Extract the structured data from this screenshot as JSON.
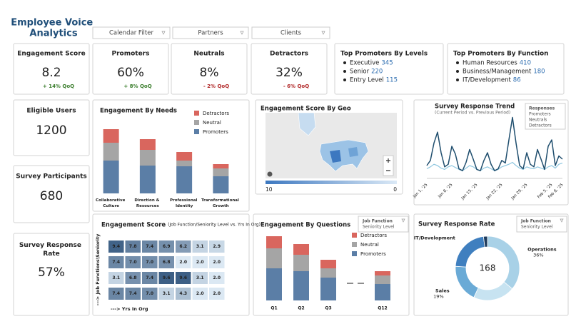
{
  "header": {
    "title": "Employee Voice Analytics"
  },
  "filters": [
    "Calendar Filter",
    "Partners",
    "Clients"
  ],
  "kpis": [
    {
      "label": "Engagement Score",
      "value": 8.2,
      "change": "+ 14% QoQ",
      "color": "#3a7d2c"
    },
    {
      "label": "Promoters",
      "value": "60%",
      "change": "+ 8% QoQ",
      "color": "#3a7d2c"
    },
    {
      "label": "Neutrals",
      "value": "8%",
      "change": "- 2% QoQ",
      "color": "#b22a2a"
    },
    {
      "label": "Detractors",
      "value": "32%",
      "change": "- 6% QoQ",
      "color": "#b22a2a"
    }
  ],
  "top_lists": [
    {
      "title": "Top Promoters By Levels",
      "items": [
        {
          "name": "Executive",
          "value": 345
        },
        {
          "name": "Senior",
          "value": 220
        },
        {
          "name": "Entry Level",
          "value": 115
        }
      ]
    },
    {
      "title": "Top Promoters By Function",
      "items": [
        {
          "name": "Human Resources",
          "value": 410
        },
        {
          "name": "Business/Management",
          "value": 180
        },
        {
          "name": "IT/Development",
          "value": 86
        }
      ]
    }
  ],
  "stats": [
    {
      "label": "Eligible Users",
      "value": 1200
    },
    {
      "label": "Survey Participants",
      "value": 680
    },
    {
      "label": "Survey Response Rate",
      "value": "57%"
    }
  ],
  "chart_data": [
    {
      "type": "stacked_bar",
      "title": "Engagement By Needs",
      "categories": [
        "Collaborative Culture",
        "Direction & Resources",
        "Professional Identity",
        "Transformational Growth"
      ],
      "series": [
        {
          "name": "Detractors",
          "color": "#d9665e",
          "values": [
            19,
            15,
            12,
            6
          ]
        },
        {
          "name": "Neutral",
          "color": "#a5a5a5",
          "values": [
            25,
            22,
            8,
            11
          ]
        },
        {
          "name": "Promoters",
          "color": "#5b7ea6",
          "values": [
            46,
            39,
            38,
            24
          ]
        }
      ],
      "ylim": [
        0,
        100
      ]
    },
    {
      "type": "map",
      "title": "Engagement Score By Geo",
      "legend_ticks": [
        10,
        0
      ]
    },
    {
      "type": "line",
      "title": "Survey Response Trend",
      "subtitle": "(Current Period vs. Previous Period)",
      "categories": [
        "Jan 1, '25",
        null,
        null,
        null,
        null,
        null,
        null,
        "Jan 8, '25",
        null,
        null,
        null,
        null,
        null,
        null,
        "Jan 15, '25",
        null,
        null,
        null,
        null,
        null,
        null,
        "Jan 22, '25",
        null,
        null,
        null,
        null,
        null,
        null,
        "Jan 29, '25",
        null,
        null,
        null,
        null,
        null,
        null,
        "Feb 5, '25",
        null,
        null,
        "Feb 8, '25"
      ],
      "series": [
        {
          "color": "#1f4e6e",
          "values": [
            20,
            28,
            55,
            72,
            40,
            18,
            22,
            50,
            38,
            15,
            12,
            25,
            45,
            30,
            14,
            12,
            28,
            40,
            22,
            12,
            15,
            28,
            24,
            60,
            95,
            55,
            20,
            15,
            40,
            22,
            18,
            45,
            30,
            14,
            50,
            60,
            20,
            35,
            30
          ]
        },
        {
          "color": "#8fc7e0",
          "values": [
            15,
            18,
            22,
            20,
            16,
            14,
            18,
            20,
            17,
            14,
            12,
            16,
            20,
            18,
            14,
            12,
            16,
            18,
            15,
            12,
            14,
            18,
            20,
            22,
            25,
            20,
            16,
            14,
            18,
            16,
            15,
            18,
            16,
            14,
            18,
            20,
            16,
            22,
            24
          ]
        }
      ],
      "ylim": [
        0,
        100
      ],
      "filter": {
        "title": "Responses",
        "options": [
          "Promoters",
          "Neutrals",
          "Detractors"
        ]
      }
    },
    {
      "type": "heatmap",
      "title": "Engagement Score",
      "subtitle": "(Job Function/Seniority Level vs. Yrs In Org)",
      "ylabel": "---> Job Functions\\Seniority",
      "xlabel": "---> Yrs In Org",
      "values": [
        [
          9.4,
          7.8,
          7.4,
          6.9,
          6.2,
          3.1,
          2.9
        ],
        [
          7.4,
          7.0,
          7.0,
          6.8,
          2.0,
          2.0,
          2.0
        ],
        [
          3.1,
          6.8,
          7.4,
          9.6,
          9.6,
          3.1,
          2.0
        ],
        [
          7.4,
          7.4,
          7.0,
          3.1,
          4.3,
          2.0,
          2.0
        ]
      ],
      "value_labels": [
        [
          "9.4",
          "7.8",
          "7.4",
          "6.9",
          "6.2",
          "3.1",
          "2.9"
        ],
        [
          "7.4",
          "7.0",
          "7.0",
          "6.8",
          "2.0",
          "2.0",
          "2.0"
        ],
        [
          "3.1",
          "6.8",
          "7.4",
          "9.6",
          "9.6",
          "3.1",
          "2.0"
        ],
        [
          "7.4",
          "7.4",
          "7.0",
          "3.1",
          "4.3",
          "2.0",
          "2.0"
        ]
      ]
    },
    {
      "type": "stacked_bar",
      "title": "Engagement By Questions",
      "categories": [
        "Q1",
        "Q2",
        "Q3",
        null,
        "Q12"
      ],
      "series": [
        {
          "name": "Detractors",
          "color": "#d9665e",
          "values": [
            17,
            15,
            12,
            null,
            6
          ]
        },
        {
          "name": "Neutral",
          "color": "#a5a5a5",
          "values": [
            28,
            23,
            13,
            null,
            12
          ]
        },
        {
          "name": "Promoters",
          "color": "#5b7ea6",
          "values": [
            45,
            41,
            32,
            null,
            23
          ]
        }
      ],
      "ylim": [
        0,
        100
      ],
      "filter": {
        "title": "Job Function",
        "subtitle": "Seniority Level"
      }
    },
    {
      "type": "donut",
      "title": "Survey Response Rate",
      "center_label": 168,
      "categories": [
        "Operations",
        null,
        "Sales",
        "IT/Development",
        null
      ],
      "values": [
        36,
        21,
        19,
        22,
        2
      ],
      "value_labels": [
        "36%",
        null,
        "19%",
        null,
        null
      ],
      "colors": [
        "#a8d1e7",
        "#c7e3f1",
        "#6aaad6",
        "#3f7fbf",
        "#1f3b5c"
      ],
      "filter": {
        "title": "Job Function",
        "subtitle": "Seniority Level"
      }
    }
  ]
}
